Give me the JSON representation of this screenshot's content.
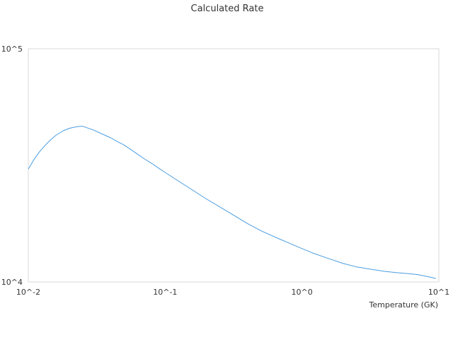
{
  "chart_data": {
    "type": "line",
    "title": "Calculated Rate",
    "xlabel": "Temperature (GK)",
    "ylabel": "",
    "xscale": "log",
    "yscale": "log",
    "xlim": [
      0.01,
      10
    ],
    "ylim": [
      10000,
      100000
    ],
    "x_ticks": [
      0.01,
      0.1,
      1,
      10
    ],
    "x_tick_labels": [
      "10^-2",
      "10^-1",
      "10^0",
      "10^1"
    ],
    "y_ticks": [
      10000,
      100000
    ],
    "y_tick_labels": [
      "10^4",
      "10^5"
    ],
    "grid": false,
    "legend": "none",
    "series": [
      {
        "color": "#4a9de0",
        "x": [
          0.01,
          0.011,
          0.012,
          0.013,
          0.014,
          0.015,
          0.016,
          0.018,
          0.02,
          0.022,
          0.024,
          0.025,
          0.03,
          0.035,
          0.04,
          0.045,
          0.05,
          0.06,
          0.07,
          0.08,
          0.09,
          0.1,
          0.12,
          0.15,
          0.2,
          0.25,
          0.3,
          0.4,
          0.5,
          0.6,
          0.7,
          0.8,
          1.0,
          1.2,
          1.5,
          2.0,
          2.5,
          3.0,
          4.0,
          5.0,
          6.0,
          7.0,
          8.0,
          9.0,
          9.5
        ],
        "values": [
          30500,
          33500,
          36000,
          38000,
          39800,
          41300,
          42700,
          44500,
          45600,
          46200,
          46500,
          46500,
          44800,
          43000,
          41500,
          39900,
          38700,
          36000,
          33800,
          32200,
          30700,
          29500,
          27500,
          25300,
          22700,
          21000,
          19700,
          17800,
          16600,
          15800,
          15200,
          14700,
          13900,
          13300,
          12700,
          12000,
          11600,
          11400,
          11100,
          10950,
          10850,
          10750,
          10580,
          10430,
          10350
        ]
      }
    ]
  }
}
